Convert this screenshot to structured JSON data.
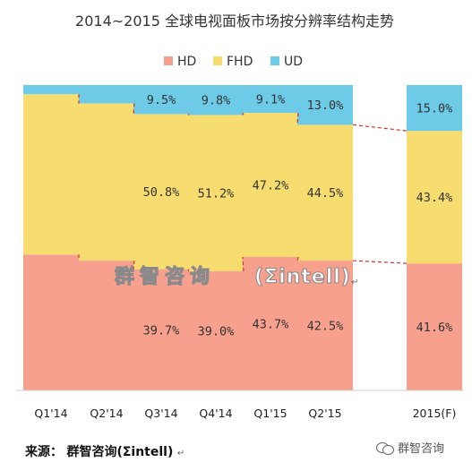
{
  "chart_data": {
    "type": "bar",
    "stacked": true,
    "percent": true,
    "title": "2014~2015 全球电视面板市场按分辨率结构走势",
    "categories": [
      "Q1'14",
      "Q2'14",
      "Q3'14",
      "Q4'14",
      "Q1'15",
      "Q2'15",
      "2015(F)"
    ],
    "series": [
      {
        "name": "HD",
        "color": "#f8a08e",
        "values": [
          44.5,
          42.5,
          39.7,
          39.0,
          43.7,
          42.5,
          41.6
        ],
        "labels": [
          "",
          "",
          "39.7%",
          "39.0%",
          "43.7%",
          "42.5%",
          "41.6%"
        ]
      },
      {
        "name": "FHD",
        "color": "#f7dc6f",
        "values": [
          52.5,
          51.5,
          50.8,
          51.2,
          47.2,
          44.5,
          43.4
        ],
        "labels": [
          "",
          "",
          "50.8%",
          "51.2%",
          "47.2%",
          "44.5%",
          "43.4%"
        ]
      },
      {
        "name": "UD",
        "color": "#6ecbe7",
        "values": [
          3.0,
          6.0,
          9.5,
          9.8,
          9.1,
          13.0,
          15.0
        ],
        "labels": [
          "",
          "",
          "9.5%",
          "9.8%",
          "9.1%",
          "13.0%",
          "15.0%"
        ]
      }
    ],
    "ylim": [
      0,
      100
    ],
    "legend_position": "top",
    "connector_lines": "dashed, red, joining series boundaries between adjacent bars",
    "grid": false
  },
  "watermark": {
    "text": "群智咨询",
    "brand": "(Σintell)",
    "mark": "↵"
  },
  "footer": {
    "source_label": "来源：",
    "source_value": "群智咨询(Σintell)",
    "source_mark": "↵",
    "brand_name": "群智咨询",
    "brand_icon": "wechat-icon"
  }
}
